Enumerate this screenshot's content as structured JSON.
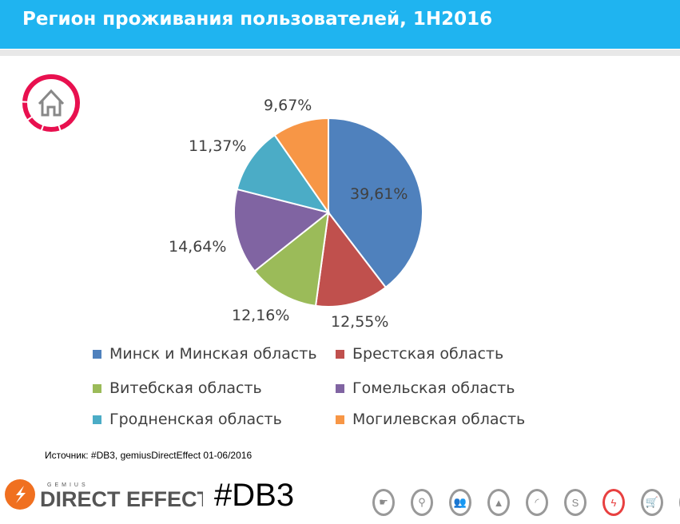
{
  "header": {
    "title": "Регион проживания пользователей, 1H2016"
  },
  "chart_data": {
    "type": "pie",
    "title": "Регион проживания пользователей, 1H2016",
    "categories": [
      "Минск и Минская область",
      "Брестская область",
      "Витебская область",
      "Гомельская область",
      "Гродненская область",
      "Могилевская область"
    ],
    "values": [
      39.61,
      12.55,
      12.16,
      14.64,
      11.37,
      9.67
    ],
    "labels": [
      "39,61%",
      "12,55%",
      "12,16%",
      "14,64%",
      "11,37%",
      "9,67%"
    ],
    "colors": [
      "#4f81bd",
      "#c0504d",
      "#9bbb59",
      "#8064a2",
      "#4bacc6",
      "#f79646"
    ],
    "legend_position": "bottom"
  },
  "source": "Источник: #DB3, gemiusDirectEffect 01-06/2016",
  "brand": {
    "logo_text": "GEMIUS DIRECT EFFECT",
    "hashtag": "#DB3",
    "accent": "#f07020"
  },
  "nav_icons": [
    "hand-icon",
    "location-icon",
    "people-icon",
    "mountain-icon",
    "wifi-icon",
    "s-icon",
    "lightning-icon",
    "cart-icon",
    "traffic-light-icon"
  ]
}
